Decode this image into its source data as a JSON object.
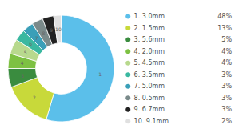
{
  "chart_data": {
    "type": "donut",
    "categories": [
      "1. 3.0mm",
      "2. 1.5mm",
      "3. 5.6mm",
      "4. 2.0mm",
      "5. 4.5mm",
      "6. 3.5mm",
      "7. 5.0mm",
      "8. 0.5mm",
      "9. 6.7mm",
      "10. 9.1mm"
    ],
    "values": [
      48,
      13,
      5,
      4,
      4,
      3,
      3,
      3,
      3,
      2
    ],
    "value_labels": [
      "48%",
      "13%",
      "5%",
      "4%",
      "4%",
      "3%",
      "3%",
      "3%",
      "3%",
      "2%"
    ],
    "slice_labels": [
      "1",
      "2",
      "3",
      "4",
      "5",
      "6",
      "7",
      "8",
      "9",
      "10"
    ],
    "colors": [
      "#5bbfea",
      "#c8d93a",
      "#3a8c3f",
      "#7dc142",
      "#b8d98d",
      "#3ab8a0",
      "#3a9fb8",
      "#7a8a8a",
      "#222222",
      "#e0e0e0"
    ]
  }
}
